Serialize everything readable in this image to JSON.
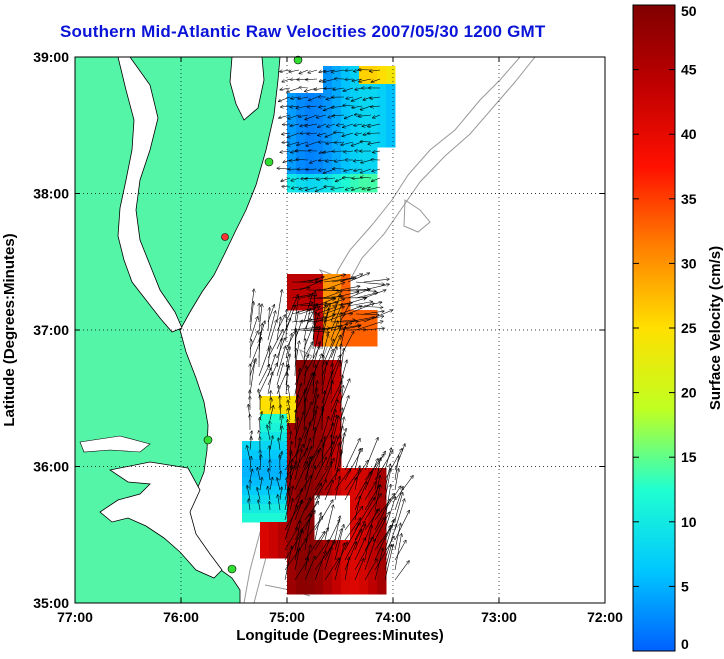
{
  "title": "Southern Mid-Atlantic Raw Velocities 2007/05/30 1200 GMT",
  "map": {
    "xlabel": "Longitude (Degrees:Minutes)",
    "ylabel": "Latitude (Degrees:Minutes)",
    "x_ticks": [
      "77:00",
      "76:00",
      "75:00",
      "74:00",
      "73:00",
      "72:00"
    ],
    "y_ticks": [
      "39:00",
      "38:00",
      "37:00",
      "36:00",
      "35:00"
    ],
    "lon_range": [
      -77,
      -72
    ],
    "lat_range": [
      35,
      39
    ],
    "land_color": "#55f5a8",
    "site_color": "#33dd33",
    "active_site_color": "#ff3333",
    "arrow_color": "#000000",
    "bathymetry_color": "#999999"
  },
  "colorbar": {
    "label": "Surface Velocity (cm/s)",
    "min": 0,
    "max": 50,
    "tick_labels": [
      "0",
      "5",
      "10",
      "15",
      "20",
      "25",
      "30",
      "35",
      "40",
      "45",
      "50"
    ],
    "stops": [
      "#0060ff",
      "#00c8ff",
      "#20ffd0",
      "#c0ff20",
      "#ffe000",
      "#ff8000",
      "#ff1000",
      "#c00000",
      "#800000"
    ]
  }
}
